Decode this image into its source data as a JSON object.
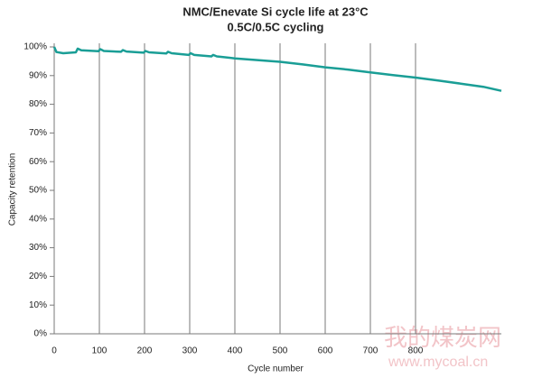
{
  "chart_data": {
    "type": "line",
    "title": "NMC/Enevate Si cycle life at 23°C",
    "subtitle": "0.5C/0.5C cycling",
    "x_label": "Cycle number",
    "y_label": "Capacity retention",
    "x": [
      0,
      5,
      20,
      48,
      52,
      60,
      98,
      102,
      110,
      148,
      152,
      160,
      198,
      202,
      210,
      248,
      252,
      260,
      298,
      302,
      310,
      348,
      352,
      360,
      400,
      450,
      500,
      550,
      600,
      650,
      700,
      750,
      800,
      850,
      900,
      950,
      990
    ],
    "series": [
      {
        "name": "NMC/Enevate Si",
        "color": "#1a9e96",
        "values": [
          100,
          98.2,
          97.8,
          98.1,
          99.4,
          98.8,
          98.5,
          99.2,
          98.6,
          98.3,
          98.9,
          98.4,
          98.0,
          98.6,
          98.1,
          97.7,
          98.3,
          97.8,
          97.2,
          97.8,
          97.2,
          96.7,
          97.2,
          96.7,
          96.0,
          95.4,
          94.8,
          93.9,
          92.9,
          92.1,
          91.1,
          90.2,
          89.3,
          88.3,
          87.2,
          86.1,
          84.7
        ]
      }
    ],
    "xlim": [
      0,
      990
    ],
    "ylim": [
      0,
      100
    ],
    "xticks": [
      0,
      100,
      200,
      300,
      400,
      500,
      600,
      700,
      800
    ],
    "yticks": [
      {
        "value": 0,
        "label": "0%"
      },
      {
        "value": 10,
        "label": "10%"
      },
      {
        "value": 20,
        "label": "20%"
      },
      {
        "value": 30,
        "label": "30%"
      },
      {
        "value": 40,
        "label": "40%"
      },
      {
        "value": 50,
        "label": "50%"
      },
      {
        "value": 60,
        "label": "60%"
      },
      {
        "value": 70,
        "label": "70%"
      },
      {
        "value": 80,
        "label": "80%"
      },
      {
        "value": 90,
        "label": "90%"
      },
      {
        "value": 100,
        "label": "100%"
      }
    ],
    "grid": true,
    "watermark": {
      "text": "我的煤炭网",
      "url": "www.mycoal.cn"
    }
  }
}
